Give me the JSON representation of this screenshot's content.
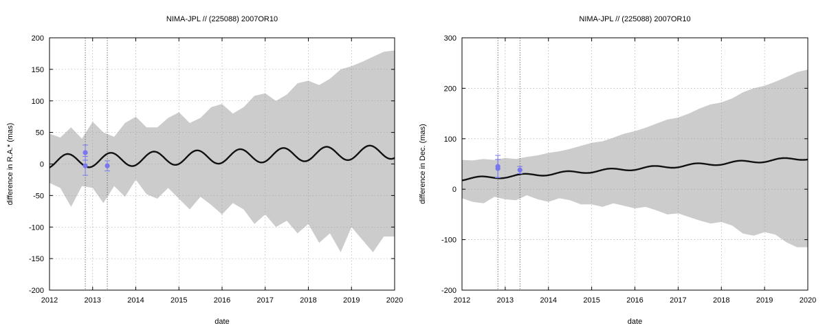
{
  "charts": {
    "colors": {
      "band": "#cccccc",
      "line": "#111111",
      "obs": "#7777ee",
      "grid": "#999999"
    },
    "chart_data": [
      {
        "type": "line",
        "title": "NIMA-JPL // (225088) 2007OR10",
        "xlabel": "date",
        "ylabel": "difference in R.A.* (mas)",
        "xlim": [
          2012,
          2020
        ],
        "ylim": [
          -200,
          200
        ],
        "xticks": [
          "2012",
          "2013",
          "2014",
          "2015",
          "2016",
          "2017",
          "2018",
          "2019",
          "2020"
        ],
        "yticks": [
          "-200",
          "-150",
          "-100",
          "-50",
          "0",
          "50",
          "100",
          "150",
          "200"
        ],
        "grid": true,
        "vlines": [
          2012.83,
          2013.34
        ],
        "series": [
          {
            "kind": "band",
            "x": [
              2012.0,
              2012.25,
              2012.5,
              2012.75,
              2013.0,
              2013.25,
              2013.5,
              2013.75,
              2014.0,
              2014.25,
              2014.5,
              2014.75,
              2015.0,
              2015.25,
              2015.5,
              2015.75,
              2016.0,
              2016.25,
              2016.5,
              2016.75,
              2017.0,
              2017.25,
              2017.5,
              2017.75,
              2018.0,
              2018.25,
              2018.5,
              2018.75,
              2019.0,
              2019.25,
              2019.5,
              2019.75,
              2020.0
            ],
            "upper": [
              48,
              42,
              58,
              40,
              67,
              50,
              43,
              65,
              75,
              58,
              58,
              73,
              82,
              65,
              73,
              90,
              95,
              80,
              90,
              108,
              112,
              100,
              110,
              128,
              132,
              125,
              135,
              150,
              155,
              162,
              170,
              178,
              180
            ],
            "lower": [
              -30,
              -38,
              -68,
              -35,
              -38,
              -62,
              -35,
              -52,
              -25,
              -48,
              -55,
              -38,
              -55,
              -72,
              -52,
              -65,
              -80,
              -62,
              -72,
              -95,
              -80,
              -100,
              -90,
              -110,
              -95,
              -125,
              -110,
              -140,
              -100,
              -120,
              -140,
              -115,
              -115
            ]
          },
          {
            "kind": "model",
            "phase": 0.42,
            "amplitude": 11,
            "offset": 4,
            "trend": 1.9
          },
          {
            "kind": "observations",
            "x": [
              2012.83,
              2012.83,
              2013.34
            ],
            "y": [
              18,
              -3,
              -3
            ],
            "err": [
              12,
              15,
              8
            ]
          }
        ]
      },
      {
        "type": "line",
        "title": "NIMA-JPL // (225088) 2007OR10",
        "xlabel": "date",
        "ylabel": "difference in Dec. (mas)",
        "xlim": [
          2012,
          2020
        ],
        "ylim": [
          -200,
          300
        ],
        "xticks": [
          "2012",
          "2013",
          "2014",
          "2015",
          "2016",
          "2017",
          "2018",
          "2019",
          "2020"
        ],
        "yticks": [
          "-200",
          "-100",
          "0",
          "100",
          "200",
          "300"
        ],
        "grid": true,
        "vlines": [
          2012.83,
          2013.34
        ],
        "series": [
          {
            "kind": "band",
            "x": [
              2012.0,
              2012.25,
              2012.5,
              2012.75,
              2013.0,
              2013.25,
              2013.5,
              2013.75,
              2014.0,
              2014.25,
              2014.5,
              2014.75,
              2015.0,
              2015.25,
              2015.5,
              2015.75,
              2016.0,
              2016.25,
              2016.5,
              2016.75,
              2017.0,
              2017.25,
              2017.5,
              2017.75,
              2018.0,
              2018.25,
              2018.5,
              2018.75,
              2019.0,
              2019.25,
              2019.5,
              2019.75,
              2020.0
            ],
            "upper": [
              58,
              57,
              60,
              58,
              62,
              60,
              64,
              67,
              72,
              75,
              80,
              86,
              92,
              95,
              102,
              110,
              115,
              122,
              130,
              138,
              142,
              150,
              160,
              168,
              172,
              180,
              192,
              200,
              205,
              213,
              222,
              232,
              237
            ],
            "lower": [
              -18,
              -25,
              -28,
              -15,
              -20,
              -22,
              -12,
              -20,
              -25,
              -18,
              -22,
              -30,
              -30,
              -35,
              -28,
              -33,
              -38,
              -35,
              -42,
              -50,
              -48,
              -55,
              -62,
              -68,
              -65,
              -72,
              -88,
              -92,
              -85,
              -90,
              -105,
              -115,
              -115
            ]
          },
          {
            "kind": "model",
            "phase": 0.42,
            "amplitude": 3,
            "offset": 20,
            "trend": 5.2
          },
          {
            "kind": "observations",
            "x": [
              2012.83,
              2012.83,
              2013.34
            ],
            "y": [
              45,
              41,
              38
            ],
            "err": [
              22,
              18,
              7
            ]
          }
        ]
      }
    ]
  }
}
